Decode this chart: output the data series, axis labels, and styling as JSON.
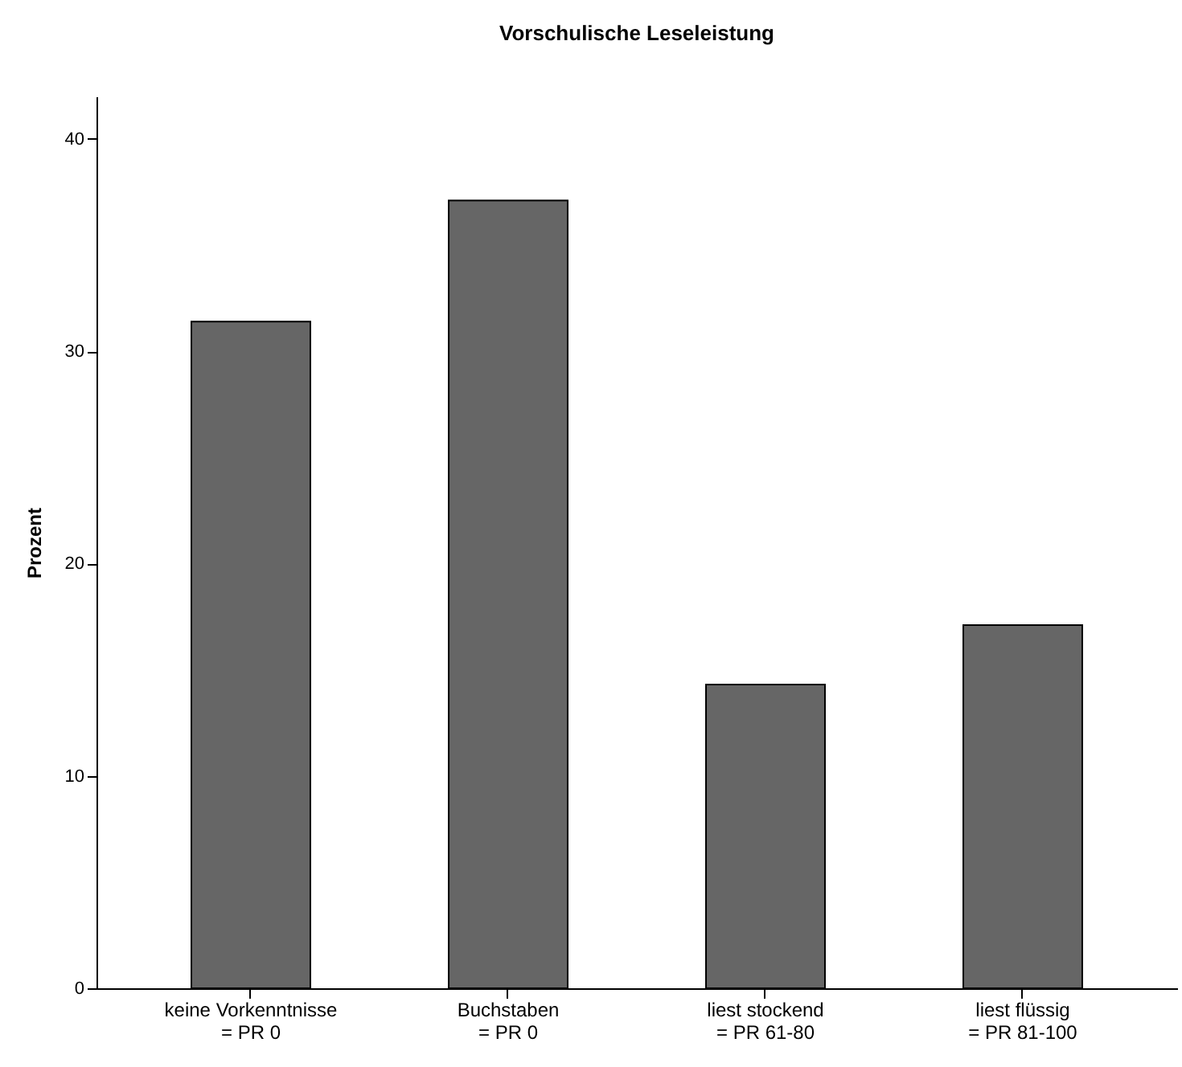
{
  "chart_data": {
    "type": "bar",
    "title": "Vorschulische Leseleistung",
    "ylabel": "Prozent",
    "categories": [
      "keine Vorkenntnisse\n= PR 0",
      "Buchstaben\n= PR 0",
      "liest stockend\n= PR 61-80",
      "liest flüssig\n= PR 81-100"
    ],
    "values": [
      31.4,
      37.1,
      14.3,
      17.1
    ],
    "color": "#666666",
    "ylim": [
      0,
      42
    ],
    "yticks": [
      0,
      10,
      20,
      30,
      40
    ],
    "grid": false
  }
}
